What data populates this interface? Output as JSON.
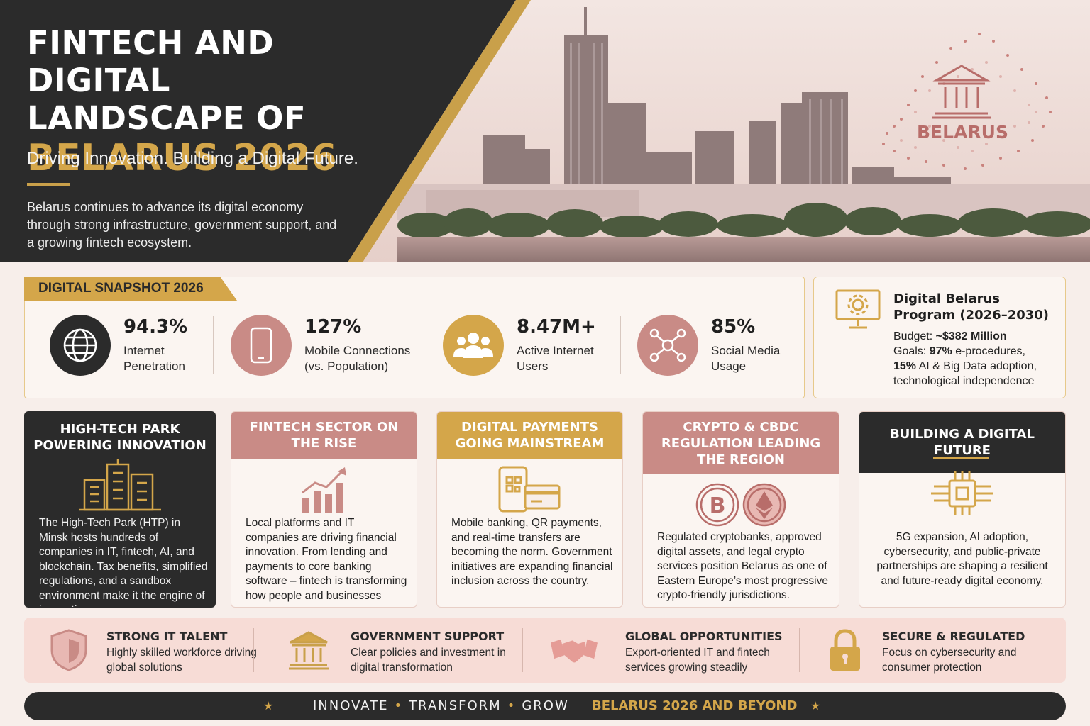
{
  "hero": {
    "title_line1": "FINTECH AND DIGITAL",
    "title_line2": "LANDSCAPE OF",
    "title_line3": "BELARUS 2026",
    "tagline": "Driving Innovation. Building a Digital Future.",
    "intro": "Belarus continues to advance its digital economy through strong infrastructure, government support, and a growing fintech ecosystem.",
    "map_label": "BELARUS"
  },
  "snapshot": {
    "tab_label": "DIGITAL SNAPSHOT 2026",
    "stats": [
      {
        "value": "94.3%",
        "label": "Internet Penetration",
        "icon": "globe-icon"
      },
      {
        "value": "127%",
        "label": "Mobile Connections (vs. Population)",
        "icon": "smartphone-icon"
      },
      {
        "value": "8.47M+",
        "label": "Active Internet Users",
        "icon": "users-icon"
      },
      {
        "value": "85%",
        "label": "Social Media Usage",
        "icon": "network-icon"
      }
    ]
  },
  "program": {
    "title": "Digital Belarus Program (2026–2030)",
    "budget_label": "Budget:",
    "budget_value": "~$382 Million",
    "goals_label": "Goals:",
    "goals_value_bold": "97%",
    "goals_rest": "e-procedures,",
    "goals_line2_bold": "15%",
    "goals_line2_rest": "AI & Big Data adoption,",
    "goals_line3": "technological independence"
  },
  "cards": [
    {
      "title": "HIGH-TECH PARK POWERING INNOVATION",
      "text": "The High-Tech Park (HTP) in Minsk hosts hundreds of companies in IT, fintech, AI, and blockchain. Tax benefits, simplified regulations, and a sandbox environment make it the engine of innovation.",
      "icon": "buildings-icon"
    },
    {
      "title": "FINTECH SECTOR ON THE RISE",
      "text": "Local platforms and IT companies are driving financial innovation. From lending and payments to core banking software – fintech is transforming how people and businesses manage money.",
      "icon": "growth-chart-icon"
    },
    {
      "title": "DIGITAL PAYMENTS GOING MAINSTREAM",
      "text": "Mobile banking, QR payments, and real-time transfers are becoming the norm. Government initiatives are expanding financial inclusion across the country.",
      "icon": "mobile-payment-icon"
    },
    {
      "title": "CRYPTO & CBDC REGULATION LEADING THE REGION",
      "text": "Regulated cryptobanks, approved digital assets, and legal crypto services position Belarus as one of Eastern Europe’s most progressive crypto-friendly jurisdictions.",
      "icon": "crypto-coins-icon"
    },
    {
      "title": "BUILDING A DIGITAL FUTURE",
      "text": "5G expansion, AI adoption, cybersecurity, and public-private partnerships are shaping a resilient and future-ready digital economy.",
      "icon": "chip-icon"
    }
  ],
  "features": [
    {
      "title": "STRONG IT TALENT",
      "desc": "Highly skilled workforce driving global solutions",
      "icon": "shield-icon"
    },
    {
      "title": "GOVERNMENT SUPPORT",
      "desc": "Clear policies and investment in digital transformation",
      "icon": "government-building-icon"
    },
    {
      "title": "GLOBAL OPPORTUNITIES",
      "desc": "Export-oriented IT and fintech services growing steadily",
      "icon": "handshake-icon"
    },
    {
      "title": "SECURE & REGULATED",
      "desc": "Focus on cybersecurity and consumer protection",
      "icon": "padlock-icon"
    }
  ],
  "footer": {
    "word1": "INNOVATE",
    "word2": "TRANSFORM",
    "word3": "GROW",
    "tagline": "BELARUS 2026 AND BEYOND"
  },
  "colors": {
    "dark": "#2b2b2b",
    "gold": "#d4a64a",
    "rose": "#c98b86",
    "background": "#f7eeea"
  }
}
